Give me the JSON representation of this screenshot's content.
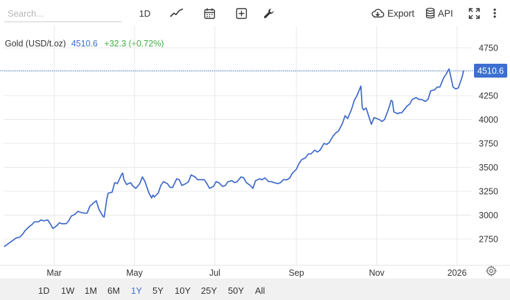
{
  "toolbar": {
    "search_placeholder": "Search...",
    "interval_label": "1D",
    "export_label": "Export",
    "api_label": "API"
  },
  "legend": {
    "name": "Gold (USD/t.oz)",
    "price": "4510.6",
    "change": "+32.3 (+0.72%)"
  },
  "ranges": {
    "items": [
      "1D",
      "1W",
      "1M",
      "6M",
      "1Y",
      "5Y",
      "10Y",
      "25Y",
      "50Y",
      "All"
    ],
    "active": "1Y"
  },
  "colors": {
    "line": "#3a66c8",
    "price_label_bg": "#3b6fd1",
    "grid": "#e8e8e8",
    "change_up": "#3fae3f"
  },
  "chart_data": {
    "type": "line",
    "y_ticks": [
      "4750",
      "4500",
      "4250",
      "4000",
      "3750",
      "3500",
      "3250",
      "3000",
      "2750"
    ],
    "x_ticks": [
      "Mar",
      "May",
      "Jul",
      "Sep",
      "Nov",
      "2026"
    ],
    "current_value_label": "4510.6",
    "ylim": [
      2630,
      4830
    ],
    "x_range": [
      "2025-01-22",
      "2026-01-06"
    ],
    "grid": true,
    "series": [
      {
        "values": [
          [
            "2025-01-22",
            2670
          ],
          [
            "2025-01-24",
            2690
          ],
          [
            "2025-01-27",
            2720
          ],
          [
            "2025-01-29",
            2740
          ],
          [
            "2025-01-31",
            2760
          ],
          [
            "2025-02-03",
            2770
          ],
          [
            "2025-02-05",
            2800
          ],
          [
            "2025-02-07",
            2840
          ],
          [
            "2025-02-10",
            2880
          ],
          [
            "2025-02-12",
            2900
          ],
          [
            "2025-02-14",
            2930
          ],
          [
            "2025-02-17",
            2930
          ],
          [
            "2025-02-19",
            2950
          ],
          [
            "2025-02-21",
            2940
          ],
          [
            "2025-02-24",
            2950
          ],
          [
            "2025-02-26",
            2910
          ],
          [
            "2025-02-28",
            2860
          ],
          [
            "2025-03-03",
            2890
          ],
          [
            "2025-03-05",
            2920
          ],
          [
            "2025-03-07",
            2910
          ],
          [
            "2025-03-10",
            2910
          ],
          [
            "2025-03-12",
            2940
          ],
          [
            "2025-03-14",
            2990
          ],
          [
            "2025-03-17",
            3010
          ],
          [
            "2025-03-19",
            3040
          ],
          [
            "2025-03-21",
            3030
          ],
          [
            "2025-03-24",
            3020
          ],
          [
            "2025-03-26",
            3020
          ],
          [
            "2025-03-28",
            3090
          ],
          [
            "2025-03-31",
            3130
          ],
          [
            "2025-04-02",
            3150
          ],
          [
            "2025-04-04",
            3060
          ],
          [
            "2025-04-07",
            2990
          ],
          [
            "2025-04-08",
            2980
          ],
          [
            "2025-04-10",
            3170
          ],
          [
            "2025-04-11",
            3230
          ],
          [
            "2025-04-14",
            3240
          ],
          [
            "2025-04-16",
            3340
          ],
          [
            "2025-04-18",
            3330
          ],
          [
            "2025-04-21",
            3420
          ],
          [
            "2025-04-22",
            3440
          ],
          [
            "2025-04-23",
            3370
          ],
          [
            "2025-04-25",
            3320
          ],
          [
            "2025-04-28",
            3340
          ],
          [
            "2025-04-30",
            3300
          ],
          [
            "2025-05-02",
            3280
          ],
          [
            "2025-05-05",
            3330
          ],
          [
            "2025-05-07",
            3400
          ],
          [
            "2025-05-09",
            3350
          ],
          [
            "2025-05-12",
            3230
          ],
          [
            "2025-05-14",
            3180
          ],
          [
            "2025-05-15",
            3210
          ],
          [
            "2025-05-16",
            3190
          ],
          [
            "2025-05-19",
            3230
          ],
          [
            "2025-05-21",
            3310
          ],
          [
            "2025-05-23",
            3350
          ],
          [
            "2025-05-26",
            3330
          ],
          [
            "2025-05-28",
            3290
          ],
          [
            "2025-05-30",
            3290
          ],
          [
            "2025-06-02",
            3380
          ],
          [
            "2025-06-04",
            3370
          ],
          [
            "2025-06-06",
            3310
          ],
          [
            "2025-06-09",
            3330
          ],
          [
            "2025-06-11",
            3350
          ],
          [
            "2025-06-13",
            3420
          ],
          [
            "2025-06-16",
            3400
          ],
          [
            "2025-06-18",
            3370
          ],
          [
            "2025-06-20",
            3370
          ],
          [
            "2025-06-23",
            3370
          ],
          [
            "2025-06-25",
            3330
          ],
          [
            "2025-06-27",
            3280
          ],
          [
            "2025-06-30",
            3300
          ],
          [
            "2025-07-02",
            3350
          ],
          [
            "2025-07-04",
            3340
          ],
          [
            "2025-07-07",
            3300
          ],
          [
            "2025-07-09",
            3310
          ],
          [
            "2025-07-11",
            3350
          ],
          [
            "2025-07-14",
            3360
          ],
          [
            "2025-07-16",
            3340
          ],
          [
            "2025-07-18",
            3350
          ],
          [
            "2025-07-21",
            3400
          ],
          [
            "2025-07-23",
            3390
          ],
          [
            "2025-07-25",
            3340
          ],
          [
            "2025-07-28",
            3310
          ],
          [
            "2025-07-30",
            3280
          ],
          [
            "2025-08-01",
            3360
          ],
          [
            "2025-08-04",
            3380
          ],
          [
            "2025-08-06",
            3370
          ],
          [
            "2025-08-08",
            3390
          ],
          [
            "2025-08-11",
            3350
          ],
          [
            "2025-08-13",
            3350
          ],
          [
            "2025-08-15",
            3340
          ],
          [
            "2025-08-18",
            3330
          ],
          [
            "2025-08-20",
            3340
          ],
          [
            "2025-08-22",
            3370
          ],
          [
            "2025-08-25",
            3370
          ],
          [
            "2025-08-27",
            3390
          ],
          [
            "2025-08-29",
            3440
          ],
          [
            "2025-09-01",
            3480
          ],
          [
            "2025-09-03",
            3540
          ],
          [
            "2025-09-05",
            3580
          ],
          [
            "2025-09-08",
            3600
          ],
          [
            "2025-09-10",
            3640
          ],
          [
            "2025-09-12",
            3640
          ],
          [
            "2025-09-15",
            3680
          ],
          [
            "2025-09-17",
            3660
          ],
          [
            "2025-09-19",
            3680
          ],
          [
            "2025-09-22",
            3750
          ],
          [
            "2025-09-24",
            3740
          ],
          [
            "2025-09-26",
            3760
          ],
          [
            "2025-09-29",
            3830
          ],
          [
            "2025-10-01",
            3860
          ],
          [
            "2025-10-03",
            3880
          ],
          [
            "2025-10-06",
            3960
          ],
          [
            "2025-10-08",
            4040
          ],
          [
            "2025-10-10",
            4010
          ],
          [
            "2025-10-13",
            4110
          ],
          [
            "2025-10-15",
            4200
          ],
          [
            "2025-10-17",
            4250
          ],
          [
            "2025-10-20",
            4350
          ],
          [
            "2025-10-21",
            4130
          ],
          [
            "2025-10-22",
            4100
          ],
          [
            "2025-10-24",
            4120
          ],
          [
            "2025-10-27",
            3990
          ],
          [
            "2025-10-28",
            3950
          ],
          [
            "2025-10-30",
            4020
          ],
          [
            "2025-11-03",
            4000
          ],
          [
            "2025-11-05",
            3980
          ],
          [
            "2025-11-07",
            4000
          ],
          [
            "2025-11-10",
            4110
          ],
          [
            "2025-11-12",
            4200
          ],
          [
            "2025-11-13",
            4190
          ],
          [
            "2025-11-14",
            4080
          ],
          [
            "2025-11-17",
            4060
          ],
          [
            "2025-11-18",
            4070
          ],
          [
            "2025-11-20",
            4070
          ],
          [
            "2025-11-24",
            4140
          ],
          [
            "2025-11-26",
            4160
          ],
          [
            "2025-11-28",
            4210
          ],
          [
            "2025-12-01",
            4230
          ],
          [
            "2025-12-03",
            4210
          ],
          [
            "2025-12-05",
            4210
          ],
          [
            "2025-12-08",
            4190
          ],
          [
            "2025-12-10",
            4210
          ],
          [
            "2025-12-12",
            4300
          ],
          [
            "2025-12-15",
            4310
          ],
          [
            "2025-12-17",
            4340
          ],
          [
            "2025-12-19",
            4340
          ],
          [
            "2025-12-22",
            4440
          ],
          [
            "2025-12-24",
            4480
          ],
          [
            "2025-12-26",
            4530
          ],
          [
            "2025-12-29",
            4340
          ],
          [
            "2025-12-31",
            4320
          ],
          [
            "2026-01-02",
            4330
          ],
          [
            "2026-01-05",
            4450
          ],
          [
            "2026-01-06",
            4510.6
          ]
        ]
      }
    ]
  }
}
